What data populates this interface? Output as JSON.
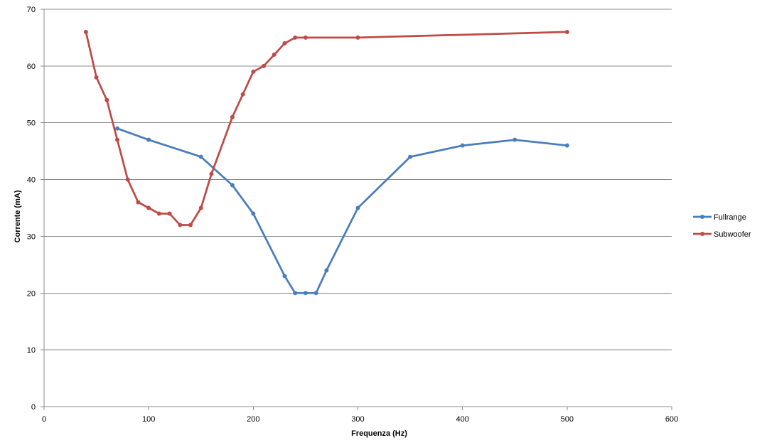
{
  "chart_data": {
    "type": "line",
    "title": "",
    "xlabel": "Frequenza (Hz)",
    "ylabel": "Corrente (mA)",
    "xlim": [
      0,
      600
    ],
    "ylim": [
      0,
      70
    ],
    "xticks": [
      0,
      100,
      200,
      300,
      400,
      500,
      600
    ],
    "yticks": [
      0,
      10,
      20,
      30,
      40,
      50,
      60,
      70
    ],
    "grid": "horizontal",
    "legend_position": "right",
    "series": [
      {
        "name": "Fullrange",
        "color": "#4a7ebb",
        "points": [
          [
            70,
            49
          ],
          [
            100,
            47
          ],
          [
            150,
            44
          ],
          [
            180,
            39
          ],
          [
            200,
            34
          ],
          [
            230,
            23
          ],
          [
            240,
            20
          ],
          [
            250,
            20
          ],
          [
            260,
            20
          ],
          [
            270,
            24
          ],
          [
            300,
            35
          ],
          [
            350,
            44
          ],
          [
            400,
            46
          ],
          [
            450,
            47
          ],
          [
            500,
            46
          ]
        ]
      },
      {
        "name": "Subwoofer",
        "color": "#be4b48",
        "points": [
          [
            40,
            66
          ],
          [
            50,
            58
          ],
          [
            60,
            54
          ],
          [
            70,
            47
          ],
          [
            80,
            40
          ],
          [
            90,
            36
          ],
          [
            100,
            35
          ],
          [
            110,
            34
          ],
          [
            120,
            34
          ],
          [
            130,
            32
          ],
          [
            140,
            32
          ],
          [
            150,
            35
          ],
          [
            160,
            41
          ],
          [
            180,
            51
          ],
          [
            190,
            55
          ],
          [
            200,
            59
          ],
          [
            210,
            60
          ],
          [
            220,
            62
          ],
          [
            230,
            64
          ],
          [
            240,
            65
          ],
          [
            250,
            65
          ],
          [
            300,
            65
          ],
          [
            500,
            66
          ]
        ]
      }
    ]
  }
}
